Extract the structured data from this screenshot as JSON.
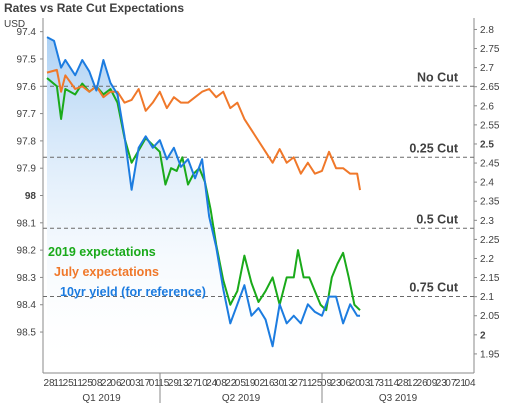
{
  "chart_data": {
    "type": "line",
    "title": "Rates vs Rate Cut Expectations",
    "left_axis": {
      "label": "USD",
      "range": [
        97.35,
        98.65
      ],
      "inverted": true,
      "ticks": [
        "97.4",
        "97.5",
        "97.6",
        "97.7",
        "97.8",
        "97.9",
        "98",
        "98.1",
        "98.2",
        "98.3",
        "98.4",
        "98.5"
      ]
    },
    "right_axis": {
      "range": [
        1.9,
        2.83
      ],
      "ticks": [
        "2.8",
        "2.75",
        "2.7",
        "2.65",
        "2.6",
        "2.55",
        "2.5",
        "2.45",
        "2.4",
        "2.35",
        "2.3",
        "2.25",
        "2.2",
        "2.15",
        "2.1",
        "2.05",
        "2",
        "1.95"
      ]
    },
    "x_ticks": [
      "28",
      "11",
      "25",
      "11",
      "25",
      "08",
      "22",
      "06",
      "20",
      "03",
      "17",
      "01",
      "15",
      "29",
      "13",
      "27",
      "10",
      "24",
      "08",
      "22",
      "05",
      "19",
      "02",
      "16",
      "30",
      "13",
      "27",
      "11",
      "25",
      "09",
      "23",
      "06",
      "20",
      "03",
      "17",
      "31",
      "14",
      "28",
      "12",
      "26",
      "09",
      "23",
      "07",
      "21",
      "04"
    ],
    "x_ticks_shown": [
      "28",
      "11",
      "25",
      "11",
      "25",
      "08",
      "22",
      "06",
      "20",
      "03",
      "17",
      "01",
      "15",
      "29",
      "13",
      "27",
      "10",
      "24",
      "08",
      "22",
      "05",
      "19",
      "02",
      "16",
      "30",
      "13",
      "27",
      "11",
      "25",
      "09",
      "23",
      "06",
      "20",
      "03",
      "17",
      "31",
      "14",
      "28",
      "12",
      "26",
      "09",
      "23",
      "07",
      "21",
      "04"
    ],
    "quarters": [
      "Q1 2019",
      "Q2 2019",
      "Q3 2019"
    ],
    "reference_lines": [
      {
        "label": "No Cut",
        "value": 97.6
      },
      {
        "label": "0.25 Cut",
        "value": 97.86
      },
      {
        "label": "0.5 Cut",
        "value": 98.12
      },
      {
        "label": "0.75 Cut",
        "value": 98.37
      }
    ],
    "series": [
      {
        "name": "2019 expectations",
        "color": "#1aaa1a",
        "axis": "left",
        "x": [
          0,
          0.7,
          1,
          1.3,
          2,
          2.5,
          3,
          3.5,
          4,
          4.5,
          5,
          5.5,
          6,
          7,
          8,
          8.4,
          8.8,
          9.2,
          9.6,
          10,
          10.4,
          10.8,
          11.2,
          11.6,
          12,
          12.5,
          13,
          13.5,
          14,
          14.5,
          15,
          15.5,
          16,
          16.5,
          17,
          17.5,
          17.8,
          18.2,
          18.6,
          19,
          19.4,
          19.8,
          20.2,
          20.6,
          21,
          21.4,
          21.8,
          22.2
        ],
        "values": [
          97.57,
          97.6,
          97.72,
          97.61,
          97.63,
          97.59,
          97.62,
          97.6,
          97.63,
          97.61,
          97.66,
          97.79,
          97.88,
          97.79,
          97.84,
          97.96,
          97.9,
          97.91,
          97.86,
          97.96,
          97.92,
          97.9,
          97.95,
          98.05,
          98.18,
          98.31,
          98.4,
          98.35,
          98.22,
          98.32,
          98.39,
          98.35,
          98.3,
          98.4,
          98.3,
          98.3,
          98.2,
          98.3,
          98.3,
          98.35,
          98.4,
          98.42,
          98.3,
          98.25,
          98.21,
          98.3,
          98.4,
          98.42
        ]
      },
      {
        "name": "July expectations",
        "color": "#f0782a",
        "axis": "left",
        "x": [
          0,
          0.7,
          1,
          1.3,
          2,
          2.5,
          3,
          3.5,
          4,
          4.5,
          5,
          5.5,
          6,
          6.5,
          7,
          7.5,
          8,
          8.5,
          9,
          9.5,
          10,
          10.5,
          11,
          11.5,
          12,
          12.5,
          13,
          13.5,
          14,
          14.5,
          15,
          15.5,
          16,
          16.5,
          17,
          17.5,
          18,
          18.5,
          19,
          19.5,
          20,
          20.5,
          21,
          21.5,
          22,
          22.2
        ],
        "values": [
          97.55,
          97.54,
          97.62,
          97.56,
          97.61,
          97.6,
          97.62,
          97.6,
          97.64,
          97.62,
          97.62,
          97.66,
          97.65,
          97.61,
          97.69,
          97.66,
          97.62,
          97.68,
          97.64,
          97.66,
          97.66,
          97.64,
          97.62,
          97.61,
          97.64,
          97.62,
          97.68,
          97.66,
          97.72,
          97.76,
          97.8,
          97.84,
          97.88,
          97.83,
          97.88,
          97.86,
          97.92,
          97.88,
          97.92,
          97.91,
          97.84,
          97.9,
          97.9,
          97.92,
          97.92,
          97.98
        ]
      },
      {
        "name": "10yr yield (for reference)",
        "color": "#1c7ce0",
        "axis": "right",
        "x": [
          0,
          0.5,
          1,
          1.3,
          2,
          2.5,
          3,
          3.5,
          4,
          4.5,
          5,
          5.5,
          6,
          6.5,
          7,
          7.5,
          8,
          8.5,
          9,
          9.5,
          10,
          10.5,
          11,
          11.5,
          12,
          12.5,
          13,
          13.5,
          14,
          14.5,
          15,
          15.5,
          16,
          16.5,
          17,
          17.5,
          18,
          18.5,
          19,
          19.5,
          20,
          20.5,
          21,
          21.5,
          22,
          22.2
        ],
        "values": [
          2.78,
          2.77,
          2.7,
          2.72,
          2.68,
          2.72,
          2.69,
          2.64,
          2.72,
          2.66,
          2.63,
          2.52,
          2.38,
          2.49,
          2.52,
          2.49,
          2.51,
          2.46,
          2.49,
          2.44,
          2.46,
          2.41,
          2.46,
          2.31,
          2.23,
          2.12,
          2.03,
          2.08,
          2.13,
          2.05,
          2.07,
          2.04,
          1.97,
          2.08,
          2.03,
          2.05,
          2.03,
          2.08,
          2.06,
          2.05,
          2.1,
          2.1,
          2.03,
          2.08,
          2.05,
          2.05
        ]
      }
    ]
  }
}
